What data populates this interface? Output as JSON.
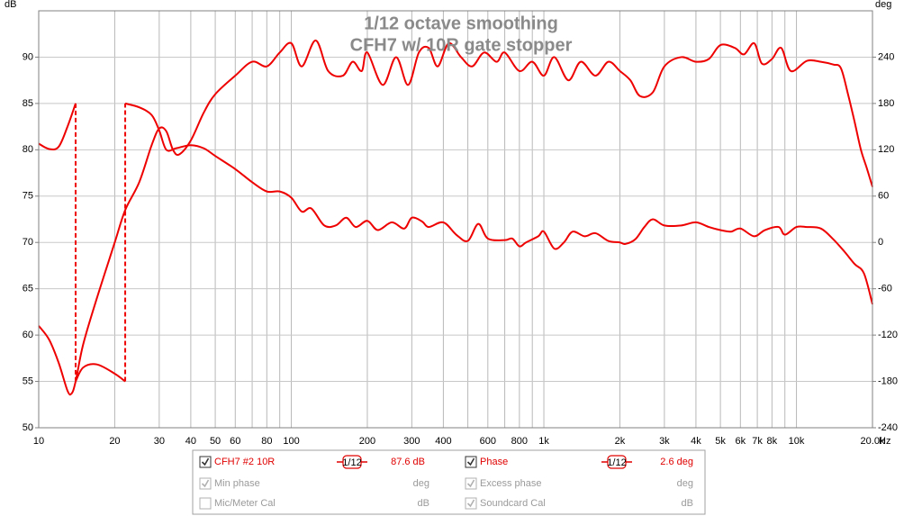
{
  "chart_data": {
    "type": "line",
    "title": [
      "1/12 octave smoothing",
      "CFH7 w/ 10R gate stopper"
    ],
    "xlabel": "Hz",
    "ylabel": "dB",
    "y2label": "deg",
    "xscale": "log",
    "xlim": [
      10,
      20000
    ],
    "xticks": [
      10,
      20,
      30,
      40,
      50,
      60,
      80,
      100,
      200,
      300,
      400,
      600,
      800,
      {
        "value": 1000,
        "label": "1k"
      },
      {
        "value": 2000,
        "label": "2k"
      },
      {
        "value": 3000,
        "label": "3k"
      },
      {
        "value": 4000,
        "label": "4k"
      },
      {
        "value": 5000,
        "label": "5k"
      },
      {
        "value": 6000,
        "label": "6k"
      },
      {
        "value": 7000,
        "label": "7k"
      },
      {
        "value": 8000,
        "label": "8k"
      },
      {
        "value": 10000,
        "label": "10k"
      },
      {
        "value": 20000,
        "label": "20.0k"
      }
    ],
    "x_minor_grid": [
      70,
      90,
      500,
      700,
      900,
      9000
    ],
    "ylim": [
      50,
      95
    ],
    "yticks": [
      50,
      55,
      60,
      65,
      70,
      75,
      80,
      85,
      90
    ],
    "y2lim": [
      -240,
      300
    ],
    "y2ticks": [
      -240,
      -180,
      -120,
      -60,
      0,
      60,
      120,
      180,
      240
    ],
    "grid": true,
    "series": [
      {
        "name": "CFH7 #2 10R",
        "color": "#ee0000",
        "axis": "y",
        "x": [
          10,
          11,
          12,
          13,
          13.5,
          14,
          15,
          17,
          20,
          22,
          25,
          28,
          30,
          32,
          34,
          36,
          40,
          45,
          50,
          60,
          70,
          80,
          90,
          100,
          110,
          125,
          140,
          160,
          175,
          190,
          200,
          230,
          260,
          290,
          320,
          350,
          380,
          420,
          470,
          520,
          580,
          650,
          700,
          800,
          900,
          1000,
          1100,
          1250,
          1400,
          1600,
          1800,
          2000,
          2200,
          2400,
          2700,
          3000,
          3500,
          4000,
          4500,
          5000,
          5700,
          6200,
          6800,
          7300,
          8000,
          8700,
          9500,
          11000,
          12500,
          14000,
          15000,
          16000,
          17000,
          18000,
          19000,
          20000
        ],
        "values": [
          61,
          59.5,
          57,
          54,
          53.7,
          55,
          59,
          64,
          70,
          73.5,
          76.5,
          80.5,
          82.3,
          82,
          80,
          79.5,
          81,
          84,
          86,
          88,
          89.5,
          89,
          90.5,
          91.5,
          89,
          91.8,
          88.5,
          88,
          89.5,
          88.5,
          90.5,
          87,
          90,
          87,
          90.5,
          91,
          89,
          91.5,
          90,
          89,
          90.5,
          89.5,
          90.5,
          88.5,
          89.5,
          88,
          90,
          87.5,
          89.5,
          88,
          89.5,
          88.5,
          87.5,
          85.8,
          86.2,
          89,
          90,
          89.5,
          89.8,
          91.3,
          91,
          90.3,
          91.5,
          89.3,
          89.8,
          91,
          88.5,
          89.6,
          89.5,
          89.2,
          88.8,
          86,
          83,
          80,
          78,
          76
        ]
      },
      {
        "name": "Phase",
        "color": "#ee0000",
        "axis": "y2",
        "x": [
          10,
          11,
          12,
          13,
          14,
          null,
          14,
          15,
          17,
          20,
          22,
          null,
          22,
          25,
          28,
          30,
          32,
          35,
          40,
          45,
          50,
          60,
          70,
          80,
          90,
          100,
          110,
          120,
          135,
          150,
          165,
          180,
          200,
          220,
          250,
          280,
          300,
          330,
          350,
          400,
          450,
          500,
          550,
          600,
          700,
          750,
          800,
          850,
          950,
          1000,
          1100,
          1200,
          1300,
          1450,
          1600,
          1800,
          2000,
          2100,
          2300,
          2500,
          2700,
          3000,
          3500,
          4000,
          4500,
          5000,
          5500,
          6000,
          6800,
          7500,
          8500,
          9000,
          10000,
          11000,
          12500,
          14000,
          15500,
          17000,
          18500,
          20000
        ],
        "values": [
          128,
          121,
          124,
          150,
          180,
          null,
          -180,
          -162,
          -158,
          -170,
          -180,
          null,
          180,
          175,
          165,
          145,
          120,
          122,
          126,
          122,
          112,
          95,
          78,
          66,
          66,
          58,
          40,
          44,
          22,
          22,
          32,
          20,
          28,
          16,
          26,
          18,
          32,
          27,
          20,
          26,
          10,
          2,
          24,
          5,
          3,
          5,
          -5,
          0,
          8,
          14,
          -8,
          0,
          14,
          8,
          12,
          2,
          0,
          -2,
          4,
          20,
          30,
          22,
          22,
          26,
          20,
          16,
          14,
          18,
          8,
          16,
          20,
          10,
          20,
          20,
          18,
          4,
          -12,
          -28,
          -40,
          -80
        ]
      }
    ]
  },
  "panel": {
    "smoothing": [
      "1/12",
      "1/12"
    ],
    "readouts": [
      "87.6 dB",
      "2.6 deg"
    ],
    "series_checked": [
      true,
      true
    ],
    "options": [
      {
        "label": "Min phase",
        "unit": "deg",
        "checked": true
      },
      {
        "label": "Excess phase",
        "unit": "deg",
        "checked": true
      },
      {
        "label": "Mic/Meter Cal",
        "unit": "dB",
        "checked": false
      },
      {
        "label": "Soundcard Cal",
        "unit": "dB",
        "checked": true
      }
    ]
  }
}
